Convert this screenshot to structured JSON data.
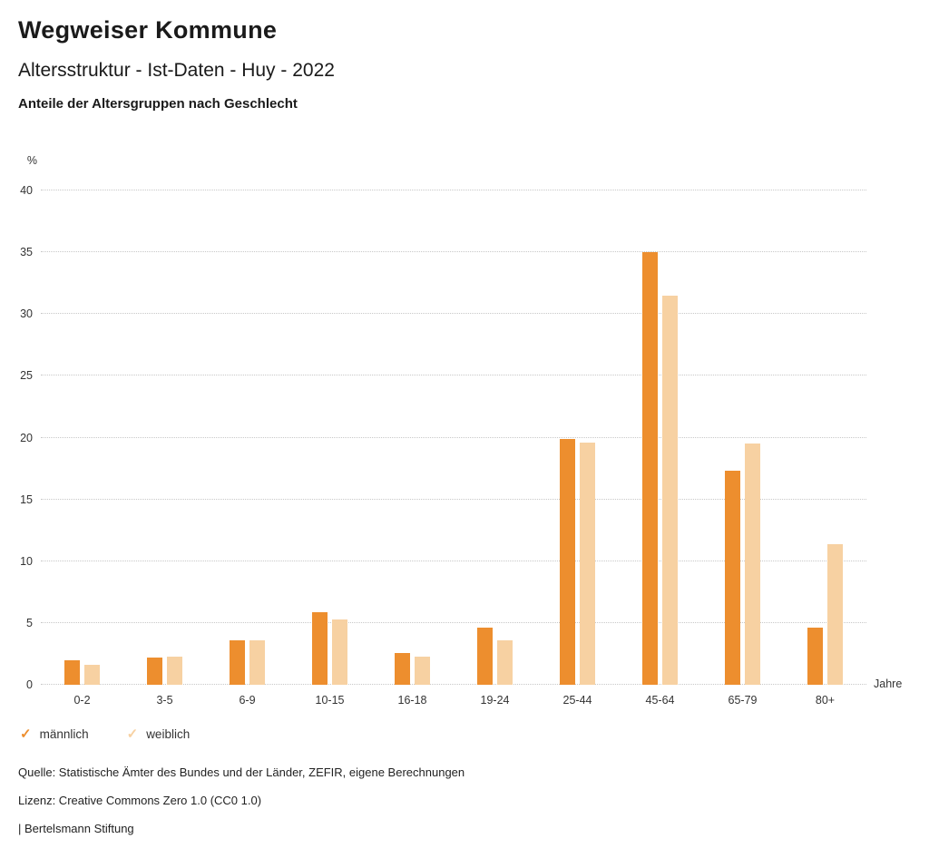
{
  "header": {
    "title": "Wegweiser Kommune",
    "subtitle": "Altersstruktur - Ist-Daten - Huy - 2022",
    "chart_heading": "Anteile der Altersgruppen nach Geschlecht"
  },
  "chart_data": {
    "type": "bar",
    "title": "Anteile der Altersgruppen nach Geschlecht",
    "categories": [
      "0-2",
      "3-5",
      "6-9",
      "10-15",
      "16-18",
      "19-24",
      "25-44",
      "45-64",
      "65-79",
      "80+"
    ],
    "series": [
      {
        "name": "männlich",
        "color": "#ED8E2E",
        "values": [
          2.0,
          2.2,
          3.6,
          5.9,
          2.6,
          4.6,
          19.9,
          35.0,
          17.3,
          4.6
        ]
      },
      {
        "name": "weiblich",
        "color": "#F7D1A2",
        "values": [
          1.6,
          2.3,
          3.6,
          5.3,
          2.3,
          3.6,
          19.6,
          31.5,
          19.5,
          11.4
        ]
      }
    ],
    "ylabel": "%",
    "xlabel": "Jahre",
    "ylim": [
      0,
      40
    ],
    "yticks": [
      0,
      5,
      10,
      15,
      20,
      25,
      30,
      35,
      40
    ],
    "grid": "horizontal-dotted",
    "legend_position": "bottom-left"
  },
  "legend": {
    "items": [
      {
        "label": "männlich",
        "color": "#ED8E2E",
        "icon": "check"
      },
      {
        "label": "weiblich",
        "color": "#F7D1A2",
        "icon": "check"
      }
    ]
  },
  "footer": {
    "source": "Quelle: Statistische Ämter des Bundes und der Länder, ZEFIR, eigene Berechnungen",
    "license": "Lizenz: Creative Commons Zero 1.0 (CC0 1.0)",
    "attribution": "| Bertelsmann Stiftung"
  }
}
